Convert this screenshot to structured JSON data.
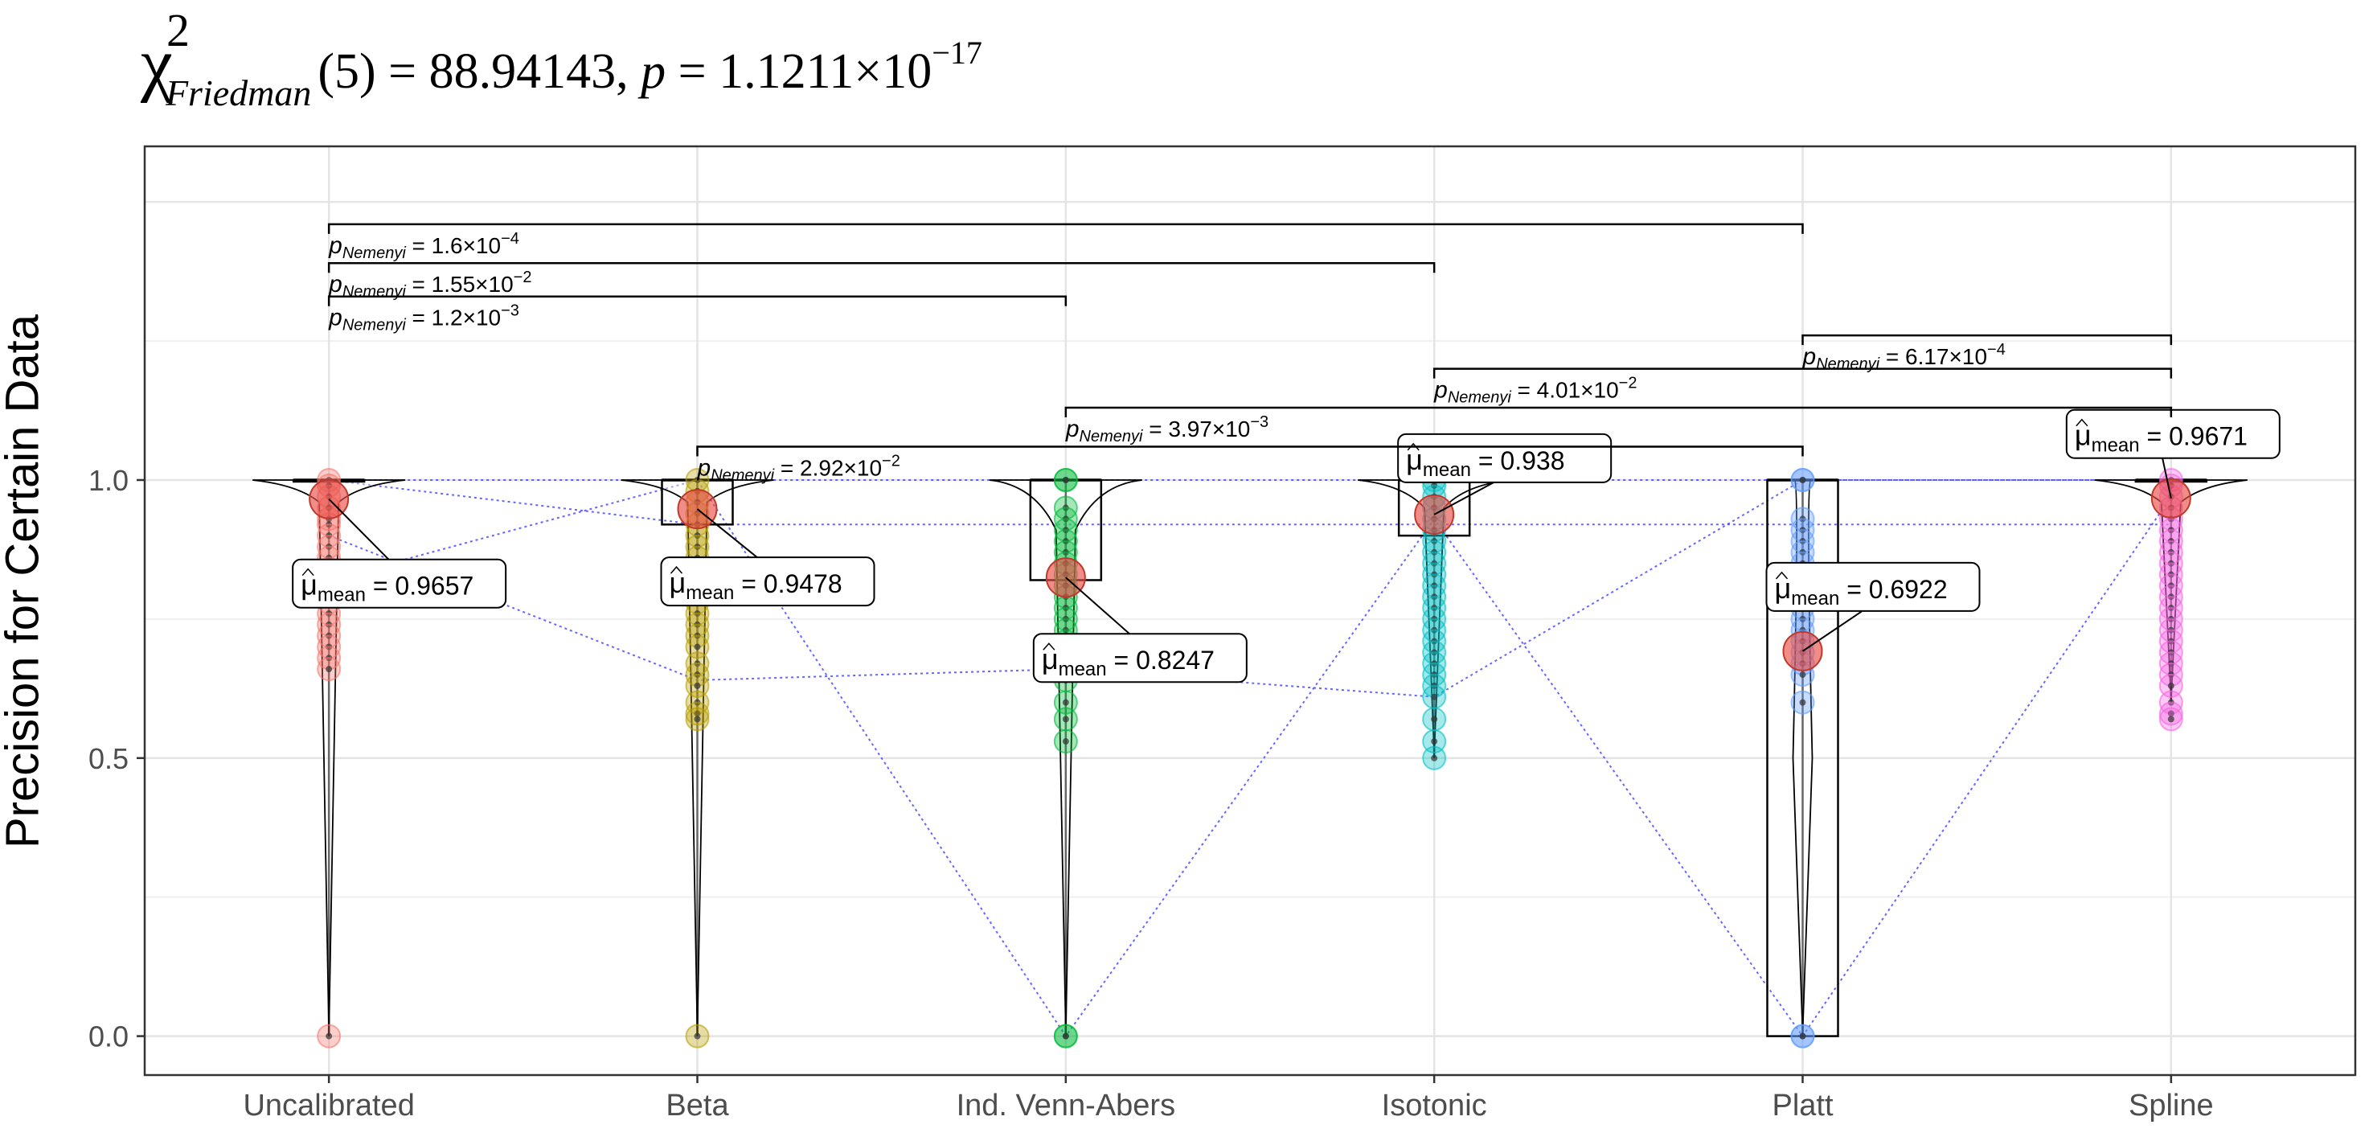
{
  "title": {
    "chi": "χ",
    "sup": "2",
    "sub": "Friedman",
    "df": "(5) = 88.94143, ",
    "p_label": "p",
    "p_eq": " = 1.1211×10",
    "p_exp": "−17"
  },
  "chart_data": {
    "type": "violin-box-scatter",
    "ylabel": "Precision for Certain Data",
    "ylim": [
      -0.07,
      1.6
    ],
    "yticks": [
      0.0,
      0.5,
      1.0
    ],
    "ytick_labels": [
      "0.0",
      "0.5",
      "1.0"
    ],
    "grid": true,
    "categories": [
      "Uncalibrated",
      "Beta",
      "Ind. Venn-Abers",
      "Isotonic",
      "Platt",
      "Spline"
    ],
    "colors": {
      "Uncalibrated": "#F8766D",
      "Beta": "#B79F00",
      "Ind. Venn-Abers": "#00BA38",
      "Isotonic": "#00BFC4",
      "Platt": "#619CFF",
      "Spline": "#F564E3",
      "mean_marker": "#E8504A",
      "connector": "#3333ff"
    },
    "series": [
      {
        "name": "Uncalibrated",
        "box": {
          "q1": 1.0,
          "median": 1.0,
          "q3": 1.0,
          "whisker_low": 0.0,
          "whisker_high": 1.0
        },
        "mean": 0.9657,
        "mean_label": "0.9657",
        "points": [
          1.0,
          0.99,
          0.97,
          0.95,
          0.93,
          0.92,
          0.9,
          0.88,
          0.86,
          0.84,
          0.82,
          0.8,
          0.78,
          0.76,
          0.74,
          0.72,
          0.7,
          0.68,
          0.66,
          0.0
        ]
      },
      {
        "name": "Beta",
        "box": {
          "q1": 0.92,
          "median": 1.0,
          "q3": 1.0,
          "whisker_low": 0.0,
          "whisker_high": 1.0
        },
        "mean": 0.9478,
        "mean_label": "0.9478",
        "points": [
          1.0,
          0.98,
          0.96,
          0.94,
          0.92,
          0.9,
          0.88,
          0.86,
          0.84,
          0.82,
          0.8,
          0.78,
          0.76,
          0.74,
          0.72,
          0.7,
          0.67,
          0.65,
          0.63,
          0.6,
          0.58,
          0.57,
          0.0
        ]
      },
      {
        "name": "Ind. Venn-Abers",
        "box": {
          "q1": 0.82,
          "median": 1.0,
          "q3": 1.0,
          "whisker_low": 0.0,
          "whisker_high": 1.0
        },
        "mean": 0.8247,
        "mean_label": "0.8247",
        "points": [
          1.0,
          1.0,
          0.95,
          0.93,
          0.91,
          0.89,
          0.87,
          0.85,
          0.83,
          0.81,
          0.79,
          0.77,
          0.75,
          0.73,
          0.71,
          0.69,
          0.66,
          0.64,
          0.6,
          0.57,
          0.53,
          0.0,
          0.0
        ]
      },
      {
        "name": "Isotonic",
        "box": {
          "q1": 0.9,
          "median": 1.0,
          "q3": 1.0,
          "whisker_low": 0.5,
          "whisker_high": 1.0
        },
        "mean": 0.938,
        "mean_label": "0.938",
        "points": [
          1.0,
          0.99,
          0.97,
          0.95,
          0.93,
          0.91,
          0.89,
          0.87,
          0.85,
          0.83,
          0.81,
          0.79,
          0.77,
          0.75,
          0.73,
          0.71,
          0.69,
          0.67,
          0.65,
          0.63,
          0.61,
          0.57,
          0.53,
          0.5
        ]
      },
      {
        "name": "Platt",
        "box": {
          "q1": 0.0,
          "median": 1.0,
          "q3": 1.0,
          "whisker_low": 0.0,
          "whisker_high": 1.0
        },
        "mean": 0.6922,
        "mean_label": "0.6922",
        "points": [
          1.0,
          1.0,
          0.93,
          0.91,
          0.89,
          0.87,
          0.85,
          0.83,
          0.81,
          0.79,
          0.77,
          0.75,
          0.73,
          0.71,
          0.69,
          0.67,
          0.65,
          0.6,
          0.0,
          0.0
        ]
      },
      {
        "name": "Spline",
        "box": {
          "q1": 1.0,
          "median": 1.0,
          "q3": 1.0,
          "whisker_low": 0.6,
          "whisker_high": 1.0
        },
        "mean": 0.9671,
        "mean_label": "0.9671",
        "points": [
          1.0,
          0.99,
          0.97,
          0.95,
          0.93,
          0.91,
          0.89,
          0.87,
          0.85,
          0.83,
          0.81,
          0.79,
          0.77,
          0.75,
          0.73,
          0.71,
          0.69,
          0.67,
          0.65,
          0.63,
          0.6,
          0.58,
          0.57
        ]
      }
    ],
    "connector_lines": [
      [
        1.0,
        1.0,
        1.0,
        1.0,
        1.0,
        1.0
      ],
      [
        1.0,
        0.92,
        0.92,
        0.92,
        0.92,
        0.92
      ],
      [
        0.9,
        0.64,
        0.66,
        0.61,
        1.0,
        1.0
      ],
      [
        0.82,
        1.0,
        0.0,
        0.93,
        0.0,
        0.97
      ]
    ],
    "mean_prefix": "μ",
    "mean_sub": "mean",
    "mean_eq": " = ",
    "pairwise": [
      {
        "from": 0,
        "to": 4,
        "level": 1.46,
        "label": "p",
        "sub": "Nemenyi",
        "value": " = 1.6×10",
        "exp": "−4"
      },
      {
        "from": 0,
        "to": 3,
        "level": 1.39,
        "label": "p",
        "sub": "Nemenyi",
        "value": " = 1.55×10",
        "exp": "−2"
      },
      {
        "from": 0,
        "to": 2,
        "level": 1.33,
        "label": "p",
        "sub": "Nemenyi",
        "value": " = 1.2×10",
        "exp": "−3"
      },
      {
        "from": 4,
        "to": 5,
        "level": 1.26,
        "label": "p",
        "sub": "Nemenyi",
        "value": " = 6.17×10",
        "exp": "−4"
      },
      {
        "from": 3,
        "to": 5,
        "level": 1.2,
        "label": "p",
        "sub": "Nemenyi",
        "value": " = 4.01×10",
        "exp": "−2"
      },
      {
        "from": 2,
        "to": 5,
        "level": 1.13,
        "label": "p",
        "sub": "Nemenyi",
        "value": " = 3.97×10",
        "exp": "−3"
      },
      {
        "from": 1,
        "to": 4,
        "level": 1.06,
        "label": "p",
        "sub": "Nemenyi",
        "value": " = 2.92×10",
        "exp": "−2"
      }
    ]
  }
}
